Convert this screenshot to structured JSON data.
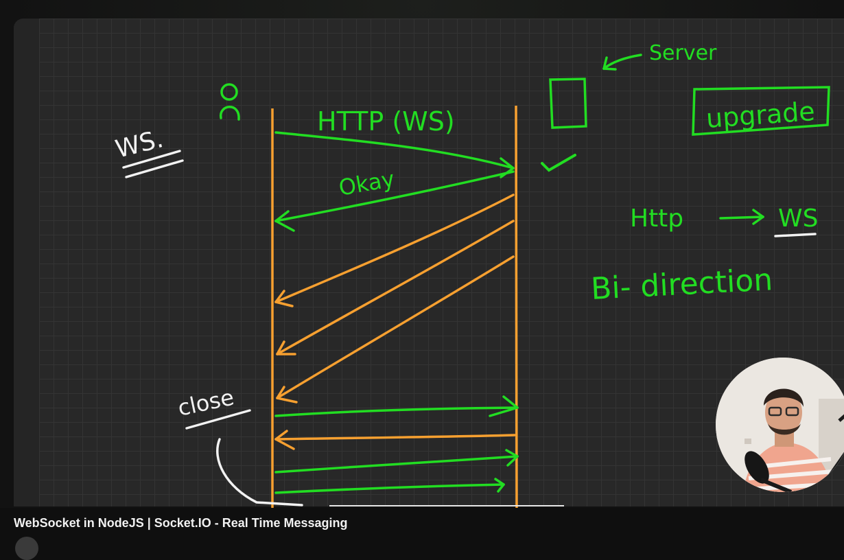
{
  "video": {
    "title": "WebSocket in NodeJS | Socket.IO - Real Time Messaging",
    "progress_fraction": 0.39
  },
  "whiteboard": {
    "ws_label": "WS.",
    "client_icon": "person-icon",
    "server_icon": "server-box-icon",
    "server_label": "Server",
    "handshake_label": "HTTP (WS)",
    "ok_label": "Okay",
    "close_label": "close",
    "upgrade_label": "upgrade",
    "protocol_from": "Http",
    "protocol_to": "WS",
    "direction_label": "Bi- direction",
    "check_icon": "checkmark-icon"
  },
  "colors": {
    "green_ink": "#22dd22",
    "orange_ink": "#f7a030",
    "white_ink": "#f2f2f2",
    "board_bg": "#282828"
  }
}
